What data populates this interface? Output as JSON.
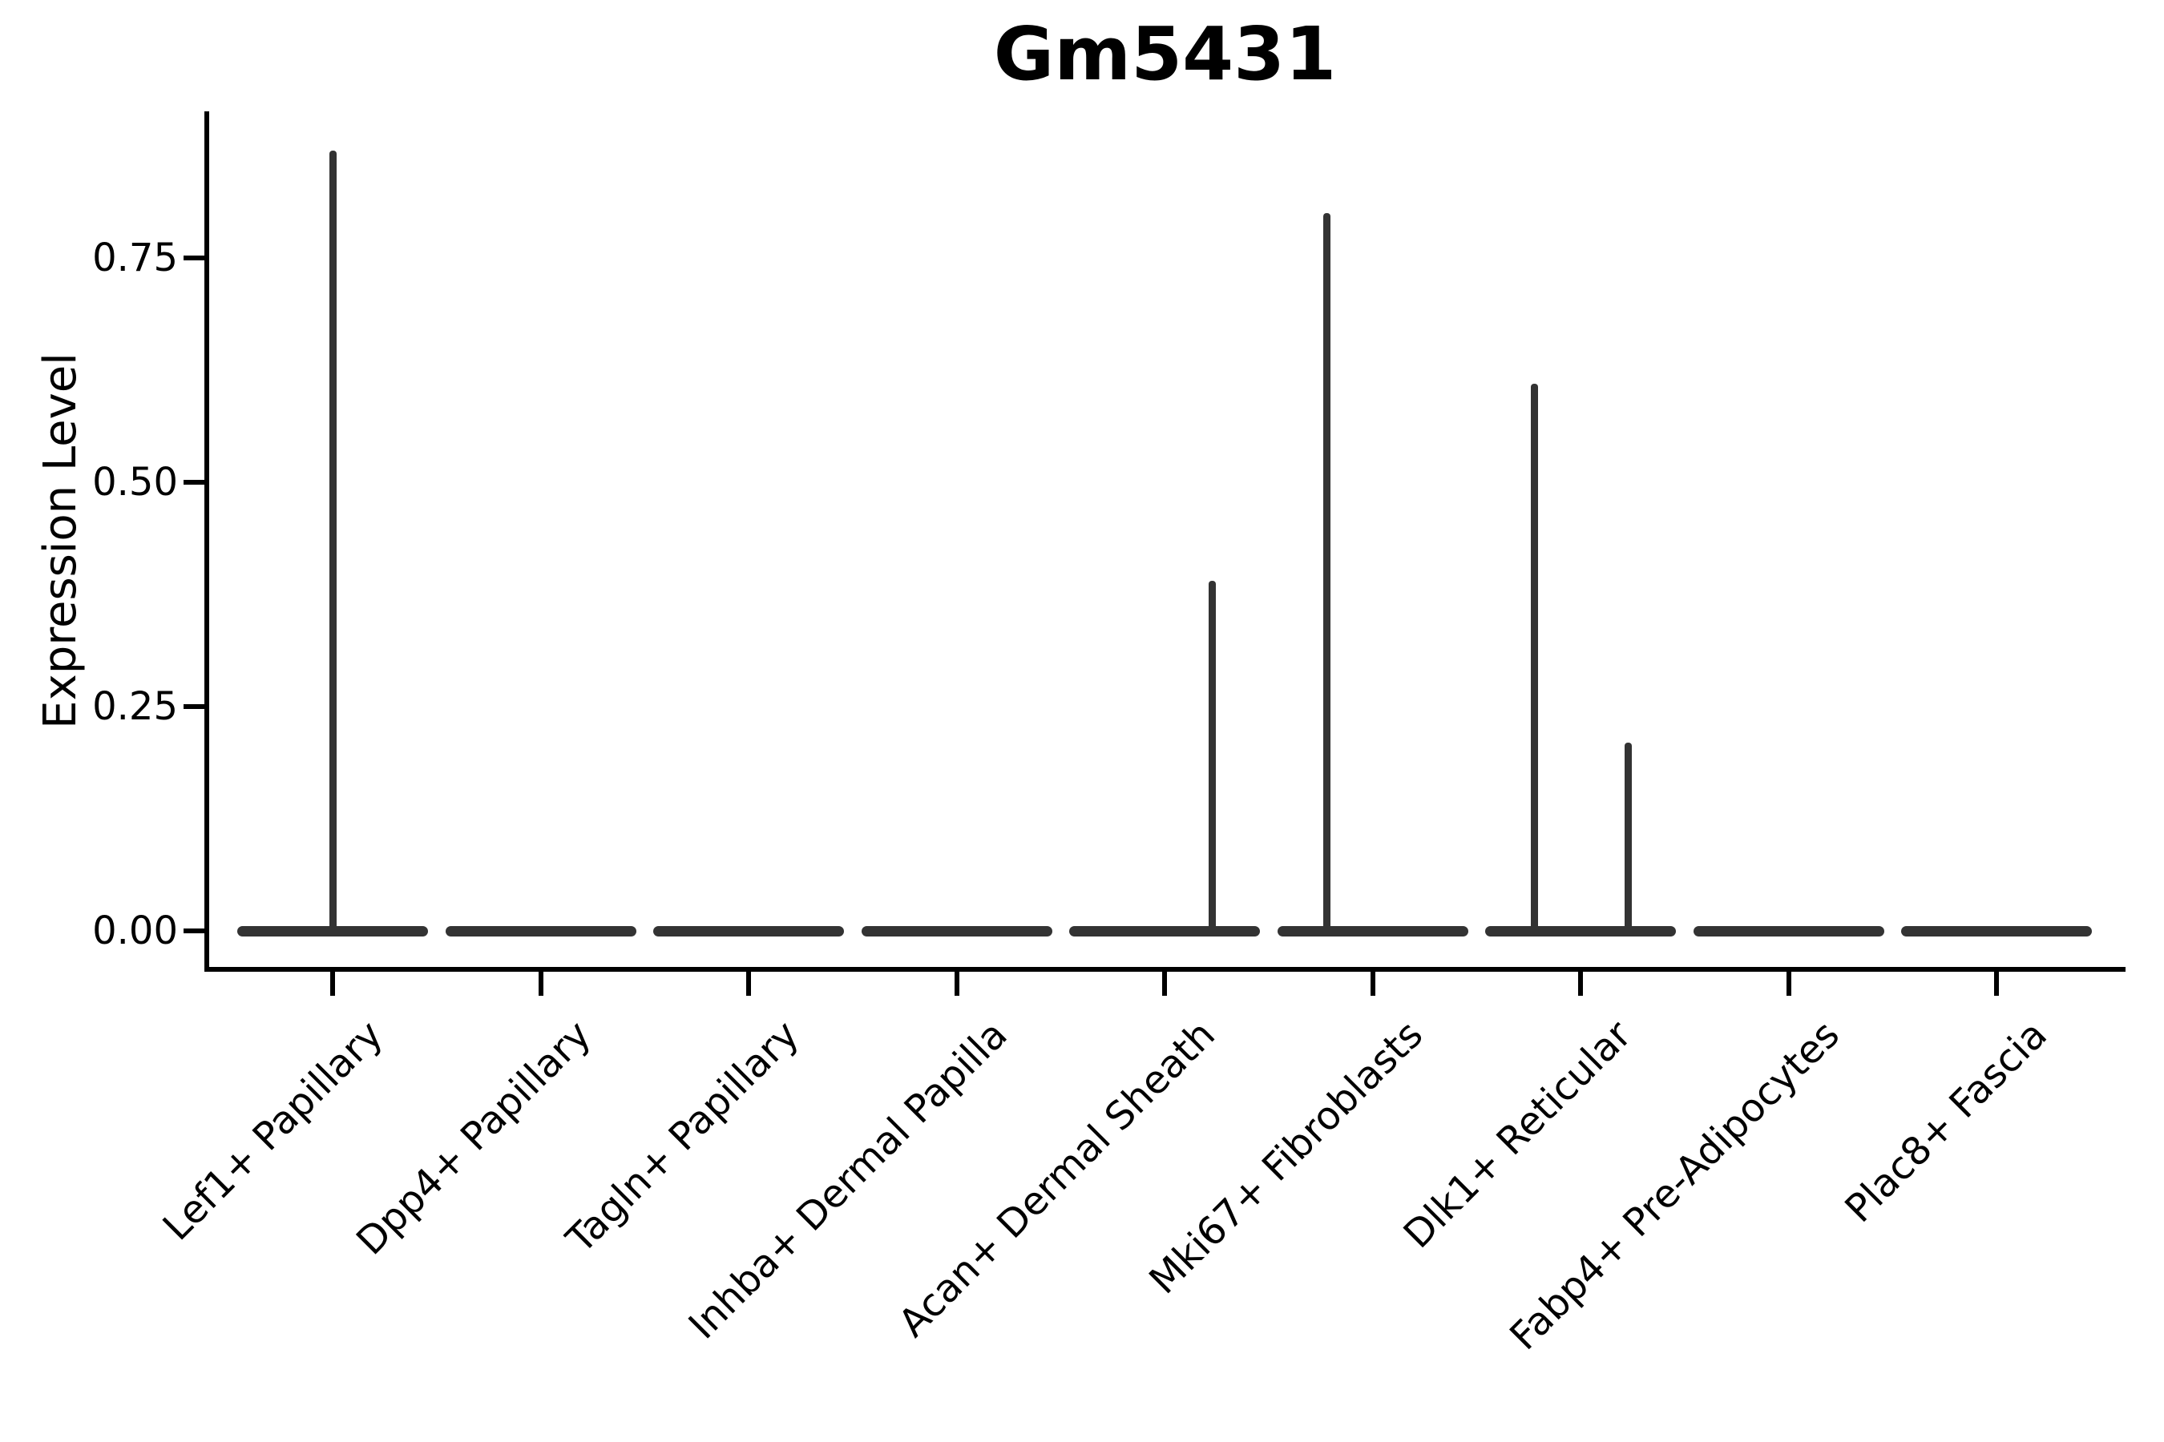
{
  "chart_data": {
    "type": "violin",
    "title": "Gm5431",
    "ylabel": "Expression Level",
    "xlabel": "",
    "ylim": [
      -0.04,
      0.91
    ],
    "grid": false,
    "legend": "none",
    "ytick_values": [
      0.0,
      0.25,
      0.5,
      0.75
    ],
    "ytick_labels": [
      "0.00",
      "0.25",
      "0.50",
      "0.75"
    ],
    "categories": [
      "Lef1+ Papillary",
      "Dpp4+ Papillary",
      "Tagln+ Papillary",
      "Inhba+ Dermal Papilla",
      "Acan+ Dermal Sheath",
      "Mki67+ Fibroblasts",
      "Dlk1+ Reticular",
      "Fabp4+ Pre-Adipocytes",
      "Plac8+ Fascia"
    ],
    "violins": [
      {
        "category": "Lef1+ Papillary",
        "body": "flat-at-zero",
        "max_expression": 0.87,
        "spikes": [
          {
            "offset": 0.0,
            "value": 0.87
          }
        ]
      },
      {
        "category": "Dpp4+ Papillary",
        "body": "flat-at-zero",
        "max_expression": 0.0,
        "spikes": []
      },
      {
        "category": "Tagln+ Papillary",
        "body": "flat-at-zero",
        "max_expression": 0.0,
        "spikes": []
      },
      {
        "category": "Inhba+ Dermal Papilla",
        "body": "flat-at-zero",
        "max_expression": 0.0,
        "spikes": []
      },
      {
        "category": "Acan+ Dermal Sheath",
        "body": "flat-at-zero",
        "max_expression": 0.39,
        "spikes": [
          {
            "offset": 0.23,
            "value": 0.39
          }
        ]
      },
      {
        "category": "Mki67+ Fibroblasts",
        "body": "flat-at-zero",
        "max_expression": 0.8,
        "spikes": [
          {
            "offset": -0.22,
            "value": 0.8
          }
        ]
      },
      {
        "category": "Dlk1+ Reticular",
        "body": "flat-at-zero",
        "max_expression": 0.61,
        "spikes": [
          {
            "offset": -0.22,
            "value": 0.61
          },
          {
            "offset": 0.23,
            "value": 0.21
          }
        ]
      },
      {
        "category": "Fabp4+ Pre-Adipocytes",
        "body": "flat-at-zero",
        "max_expression": 0.0,
        "spikes": []
      },
      {
        "category": "Plac8+ Fascia",
        "body": "flat-at-zero",
        "max_expression": 0.0,
        "spikes": []
      }
    ],
    "colors": {
      "violin": "#333333",
      "axis": "#000000",
      "text": "#000000",
      "background": "#ffffff"
    }
  }
}
